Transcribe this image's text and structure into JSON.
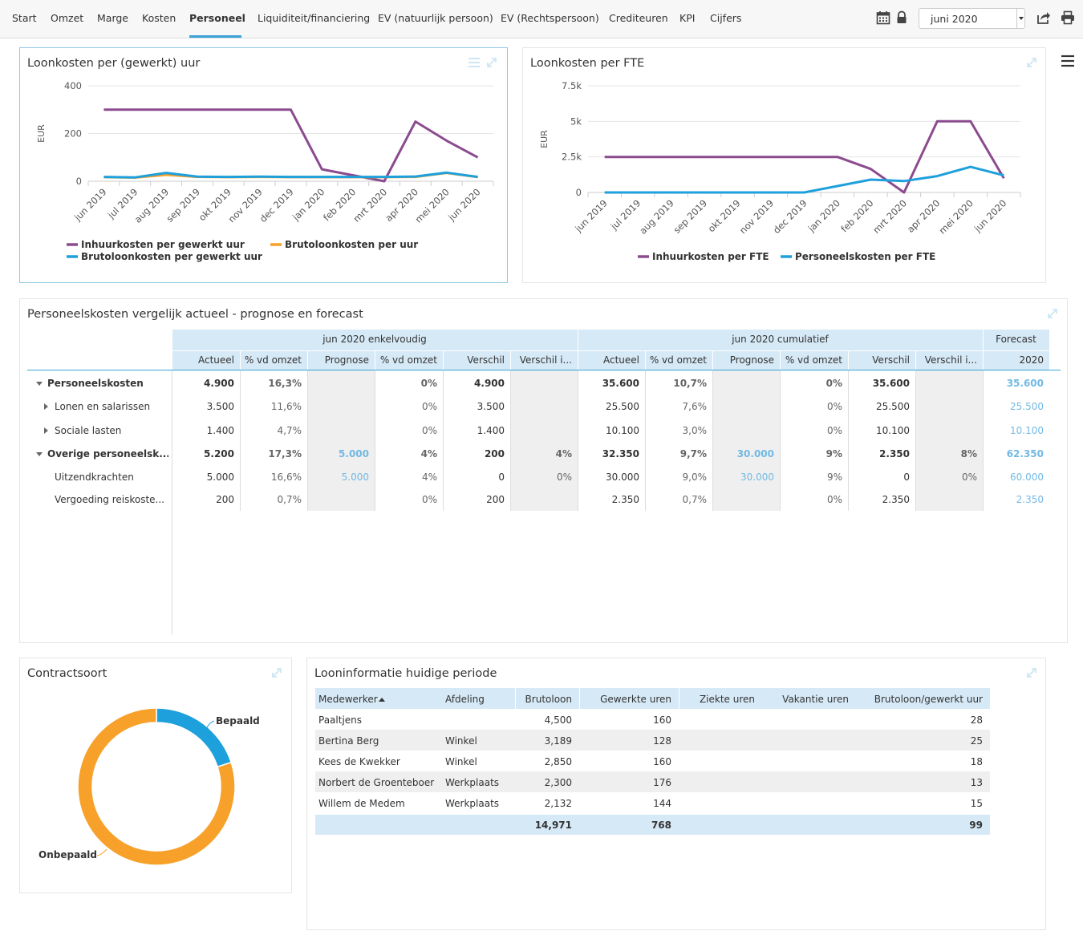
{
  "nav": {
    "tabs": [
      "Start",
      "Omzet",
      "Marge",
      "Kosten",
      "Personeel",
      "Liquiditeit/financiering",
      "EV (natuurlijk persoon)",
      "EV (Rechtspersoon)",
      "Crediteuren",
      "KPI",
      "Cijfers"
    ],
    "active_tab": "Personeel",
    "period_select": "juni 2020",
    "icons": [
      "calendar-icon",
      "lock-icon",
      "share-icon",
      "print-icon"
    ]
  },
  "colors": {
    "accent": "#3aa3d6",
    "purple": "#8b4b8f",
    "blue": "#1ea0dc",
    "orange": "#f7a12b",
    "header_bg": "#d6e9f6",
    "forecast_text": "#72b9e3"
  },
  "panels": {
    "loonkosten_uur_title": "Loonkosten per (gewerkt) uur",
    "loonkosten_fte_title": "Loonkosten per FTE",
    "vergelijk_title": "Personeelskosten vergelijk actueel - prognose en forecast",
    "contract_title": "Contractsoort",
    "looninfo_title": "Looninformatie huidige periode"
  },
  "chart_data": [
    {
      "type": "line",
      "title": "Loonkosten per (gewerkt) uur",
      "ylabel": "EUR",
      "ylim": [
        0,
        400
      ],
      "yticks": [
        "0",
        "200",
        "400"
      ],
      "x": [
        "jun 2019",
        "jul 2019",
        "aug 2019",
        "sep 2019",
        "okt 2019",
        "nov 2019",
        "dec 2019",
        "jan 2020",
        "feb 2020",
        "mrt 2020",
        "apr 2020",
        "mei 2020",
        "jun 2020"
      ],
      "series": [
        {
          "name": "Inhuurkosten per gewerkt uur",
          "color": "#8b4b8f",
          "values": [
            300,
            300,
            300,
            300,
            300,
            300,
            300,
            50,
            25,
            0,
            250,
            170,
            100
          ]
        },
        {
          "name": "Brutoloonkosten per uur",
          "color": "#f7a12b",
          "values": [
            17,
            15,
            27,
            18,
            17,
            18,
            17,
            17,
            17,
            17,
            18,
            35,
            17
          ]
        },
        {
          "name": "Brutoloonkosten per gewerkt uur",
          "color": "#1ea0dc",
          "values": [
            18,
            16,
            35,
            19,
            18,
            19,
            18,
            18,
            18,
            18,
            20,
            36,
            18
          ]
        }
      ],
      "legend": [
        "Inhuurkosten per gewerkt uur",
        "Brutoloonkosten per uur",
        "Brutoloonkosten per gewerkt uur"
      ]
    },
    {
      "type": "line",
      "title": "Loonkosten per FTE",
      "ylabel": "EUR",
      "ylim": [
        0,
        7500
      ],
      "yticks": [
        "0",
        "2.5k",
        "5k",
        "7.5k"
      ],
      "x": [
        "jun 2019",
        "jul 2019",
        "aug 2019",
        "sep 2019",
        "okt 2019",
        "nov 2019",
        "dec 2019",
        "jan 2020",
        "feb 2020",
        "mrt 2020",
        "apr 2020",
        "mei 2020",
        "jun 2020"
      ],
      "series": [
        {
          "name": "Inhuurkosten per FTE",
          "color": "#8b4b8f",
          "values": [
            2500,
            2500,
            2500,
            2500,
            2500,
            2500,
            2500,
            2500,
            1650,
            0,
            5000,
            5000,
            1000
          ]
        },
        {
          "name": "Personeelskosten per FTE",
          "color": "#1ea0dc",
          "values": [
            0,
            0,
            0,
            0,
            0,
            0,
            0,
            450,
            900,
            800,
            1150,
            1800,
            1200
          ]
        }
      ],
      "legend": [
        "Inhuurkosten per FTE",
        "Personeelskosten per FTE"
      ]
    },
    {
      "type": "pie",
      "title": "Contractsoort",
      "labels": [
        "Bepaald",
        "Onbepaald"
      ],
      "values": [
        20,
        80
      ],
      "colors": [
        "#1ea0dc",
        "#f7a12b"
      ]
    }
  ],
  "vergelijk": {
    "group_headers": [
      "jun 2020 enkelvoudig",
      "jun 2020 cumulatief",
      "Forecast"
    ],
    "sub_headers": [
      "Actueel",
      "% vd omzet",
      "Prognose",
      "% vd omzet",
      "Verschil",
      "Verschil i...",
      "Actueel",
      "% vd omzet",
      "Prognose",
      "% vd omzet",
      "Verschil",
      "Verschil i...",
      "2020"
    ],
    "rows": [
      {
        "label": "Personeelskosten",
        "level": 0,
        "bold": true,
        "expand": "open",
        "cells": [
          "4.900",
          "16,3%",
          "",
          "0%",
          "4.900",
          "",
          "35.600",
          "10,7%",
          "",
          "0%",
          "35.600",
          "",
          "35.600"
        ]
      },
      {
        "label": "Lonen en salarissen",
        "level": 1,
        "bold": false,
        "expand": "closed",
        "cells": [
          "3.500",
          "11,6%",
          "",
          "0%",
          "3.500",
          "",
          "25.500",
          "7,6%",
          "",
          "0%",
          "25.500",
          "",
          "25.500"
        ]
      },
      {
        "label": "Sociale lasten",
        "level": 1,
        "bold": false,
        "expand": "closed",
        "cells": [
          "1.400",
          "4,7%",
          "",
          "0%",
          "1.400",
          "",
          "10.100",
          "3,0%",
          "",
          "0%",
          "10.100",
          "",
          "10.100"
        ]
      },
      {
        "label": "Overige personeelsk...",
        "level": 0,
        "bold": true,
        "expand": "open",
        "cells": [
          "5.200",
          "17,3%",
          "5.000",
          "4%",
          "200",
          "4%",
          "32.350",
          "9,7%",
          "30.000",
          "9%",
          "2.350",
          "8%",
          "62.350"
        ]
      },
      {
        "label": "Uitzendkrachten",
        "level": 2,
        "bold": false,
        "expand": "",
        "cells": [
          "5.000",
          "16,6%",
          "5.000",
          "4%",
          "0",
          "0%",
          "30.000",
          "9,0%",
          "30.000",
          "9%",
          "0",
          "0%",
          "60.000"
        ]
      },
      {
        "label": "Vergoeding reiskoste...",
        "level": 2,
        "bold": false,
        "expand": "",
        "cells": [
          "200",
          "0,7%",
          "",
          "0%",
          "200",
          "",
          "2.350",
          "0,7%",
          "",
          "0%",
          "2.350",
          "",
          "2.350"
        ]
      }
    ]
  },
  "looninfo": {
    "headers": [
      "Medewerker",
      "Afdeling",
      "Brutoloon",
      "Gewerkte uren",
      "Ziekte uren",
      "Vakantie uren",
      "Brutoloon/gewerkt uur"
    ],
    "sort_icon": "sort-asc-icon",
    "rows": [
      [
        "Paaltjens",
        "",
        "4,500",
        "160",
        "",
        "",
        "28"
      ],
      [
        "Bertina Berg",
        "Winkel",
        "3,189",
        "128",
        "",
        "",
        "25"
      ],
      [
        "Kees de Kwekker",
        "Winkel",
        "2,850",
        "160",
        "",
        "",
        "18"
      ],
      [
        "Norbert de Groenteboer",
        "Werkplaats",
        "2,300",
        "176",
        "",
        "",
        "13"
      ],
      [
        "Willem de Medem",
        "Werkplaats",
        "2,132",
        "144",
        "",
        "",
        "15"
      ]
    ],
    "totals": [
      "",
      "",
      "14,971",
      "768",
      "",
      "",
      "99"
    ]
  }
}
